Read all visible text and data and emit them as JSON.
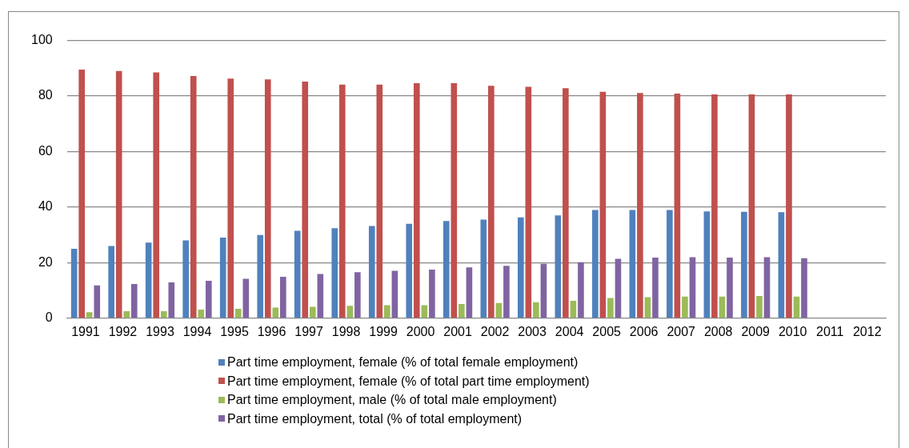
{
  "chart_data": {
    "type": "bar",
    "categories": [
      "1991",
      "1992",
      "1993",
      "1994",
      "1995",
      "1996",
      "1997",
      "1998",
      "1999",
      "2000",
      "2001",
      "2002",
      "2003",
      "2004",
      "2005",
      "2006",
      "2007",
      "2008",
      "2009",
      "2010",
      "2011",
      "2012"
    ],
    "series": [
      {
        "name": "Part time employment, female (% of total female employment)",
        "color": "#4f81bd",
        "values": [
          25,
          26,
          27.2,
          28,
          29,
          30,
          31.5,
          32.4,
          33.2,
          34,
          35,
          35.5,
          36.3,
          37,
          39,
          39,
          39,
          38.5,
          38.3,
          38.2,
          null,
          null
        ]
      },
      {
        "name": "Part time employment, female (% of total part time employment)",
        "color": "#c0504d",
        "values": [
          89.5,
          89,
          88.5,
          87.2,
          86.3,
          86,
          85.2,
          84.1,
          84.1,
          84.6,
          84.6,
          83.7,
          83.3,
          82.8,
          81.5,
          81.1,
          80.9,
          80.6,
          80.6,
          80.6,
          null,
          null
        ]
      },
      {
        "name": "Part time employment, male (% of total male employment)",
        "color": "#9bbb59",
        "values": [
          2.2,
          2.5,
          2.5,
          3.1,
          3.4,
          3.8,
          4.1,
          4.5,
          4.7,
          4.7,
          5.1,
          5.5,
          5.8,
          6.3,
          7.3,
          7.6,
          7.8,
          7.8,
          8.0,
          7.8,
          null,
          null
        ]
      },
      {
        "name": "Part time employment, total (% of total employment)",
        "color": "#8064a2",
        "values": [
          11.8,
          12.3,
          12.9,
          13.5,
          14.2,
          14.9,
          15.9,
          16.6,
          17.1,
          17.5,
          18.3,
          18.9,
          19.6,
          20.2,
          21.4,
          21.8,
          22.0,
          21.8,
          22.0,
          21.6,
          null,
          null
        ]
      }
    ],
    "ylim": [
      0,
      100
    ],
    "yticks": [
      0,
      20,
      40,
      60,
      80,
      100
    ],
    "grid": "y",
    "legend": "bottom"
  }
}
